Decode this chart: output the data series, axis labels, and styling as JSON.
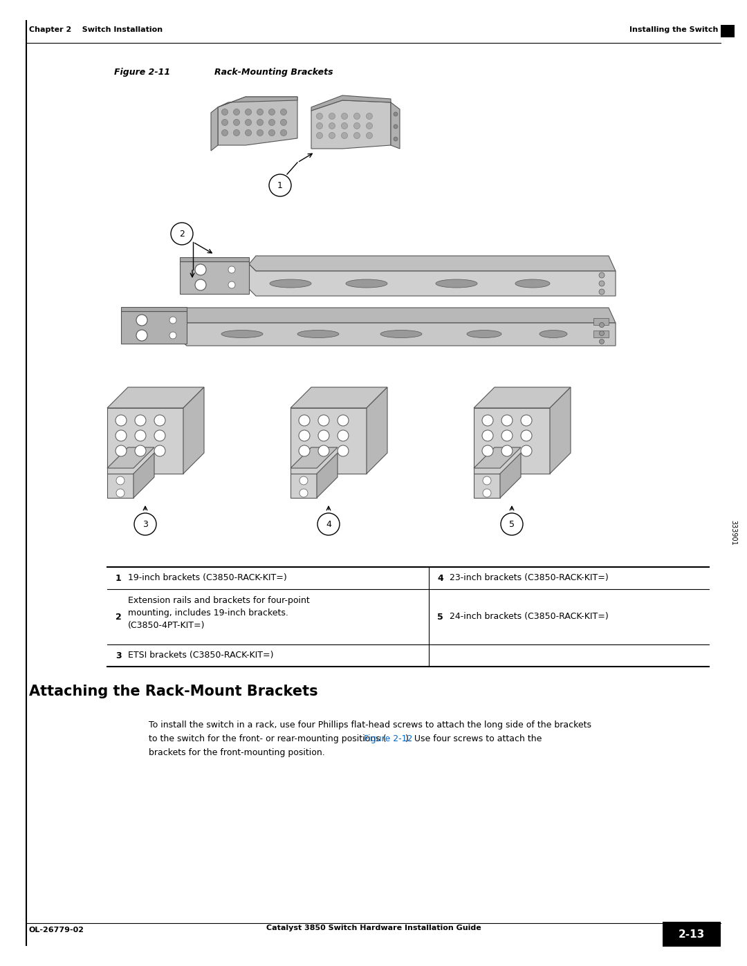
{
  "page_bg": "#ffffff",
  "header_left": "Chapter 2    Switch Installation",
  "header_right": "Installing the Switch",
  "footer_left": "OL-26779-02",
  "footer_center": "Catalyst 3850 Switch Hardware Installation Guide",
  "footer_page_label": "2-13",
  "figure_label": "Figure 2-11",
  "figure_title": "Rack-Mounting Brackets",
  "sidebar_text": "333901",
  "section_heading": "Attaching the Rack-Mount Brackets",
  "body_line1": "To install the switch in a rack, use four Phillips flat-head screws to attach the long side of the brackets",
  "body_line2_pre": "to the switch for the front- or rear-mounting positions (",
  "body_line2_link": "Figure 2-12",
  "body_line2_post": "). Use four screws to attach the",
  "body_line3": "brackets for the front-mounting position.",
  "table_rows": [
    {
      "num": "1",
      "desc": "19-inch brackets (C3850-RACK-KIT=)",
      "col2_num": "4",
      "col2_desc": "23-inch brackets (C3850-RACK-KIT=)"
    },
    {
      "num": "2",
      "desc_lines": [
        "Extension rails and brackets for four-point",
        "mounting, includes 19-inch brackets.",
        "(C3850-4PT-KIT=)"
      ],
      "col2_num": "5",
      "col2_desc": "24-inch brackets (C3850-RACK-KIT=)"
    },
    {
      "num": "3",
      "desc": "ETSI brackets (C3850-RACK-KIT=)",
      "col2_num": "",
      "col2_desc": ""
    }
  ],
  "gray_light": "#c8c8c8",
  "gray_mid": "#aaaaaa",
  "gray_dark": "#888888",
  "gray_edge": "#555555",
  "link_color": "#0066cc"
}
